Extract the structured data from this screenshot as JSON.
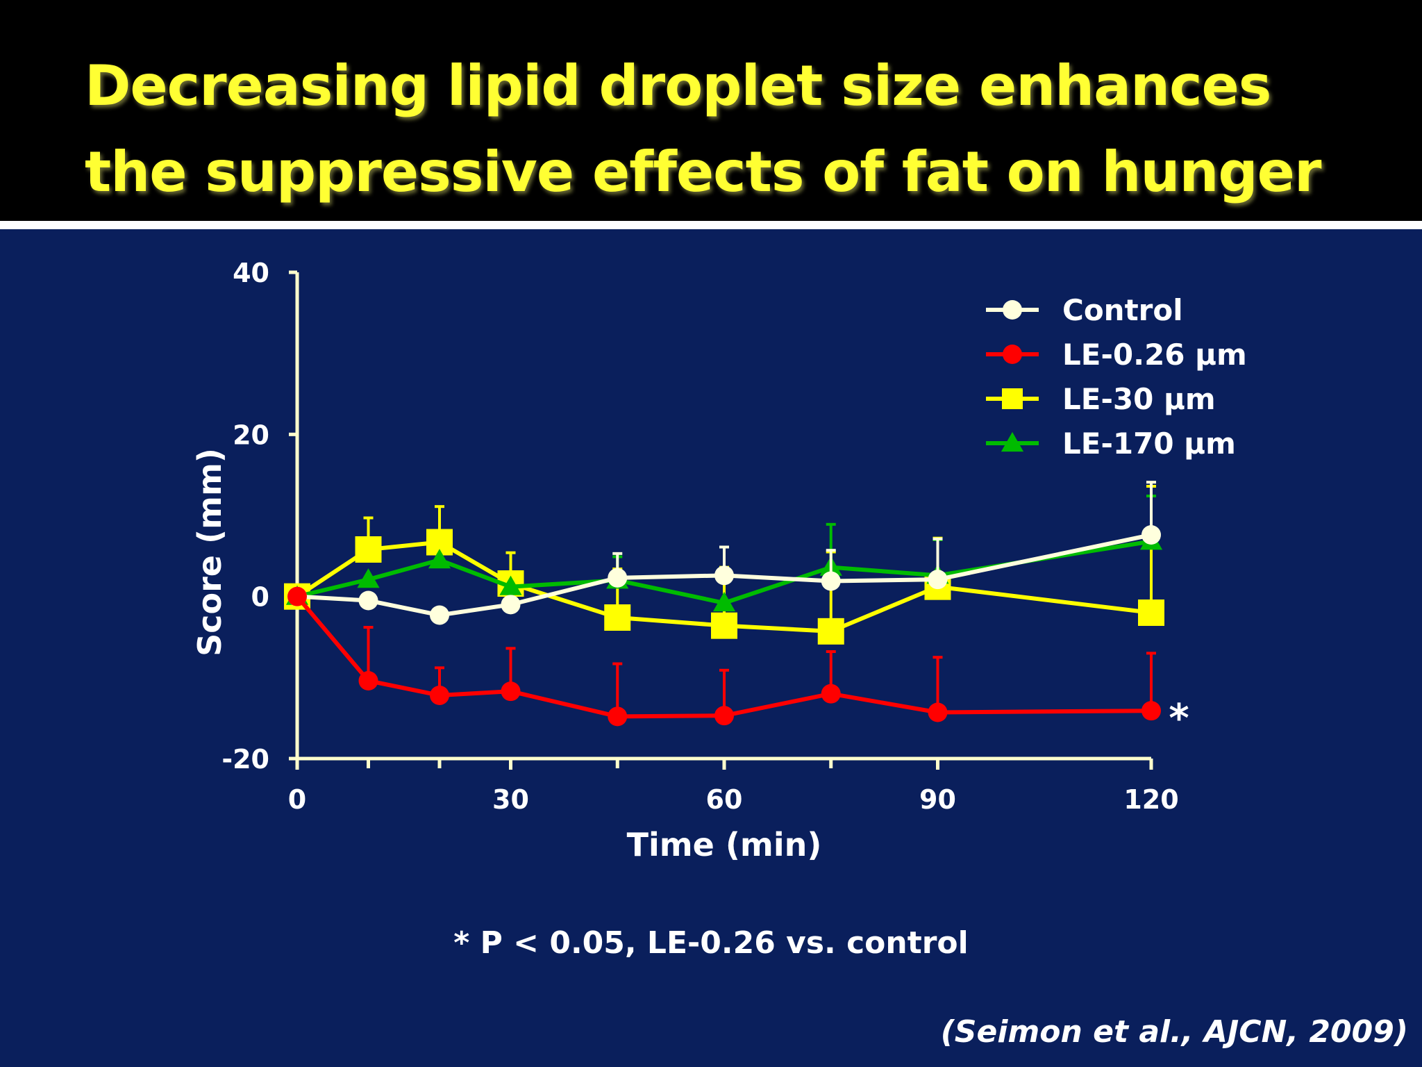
{
  "slide": {
    "title_line1": "Decreasing lipid droplet size enhances",
    "title_line2": "the suppressive effects of fat on hunger",
    "footnote": "* P < 0.05, LE-0.26 vs. control",
    "citation": "(Seimon et al., AJCN, 2009)"
  },
  "colors": {
    "background": "#0a1f5c",
    "title": "#ffff33",
    "axis": "#ffffcc"
  },
  "chart_data": {
    "type": "line",
    "title": "",
    "xlabel": "Time (min)",
    "ylabel": "Score (mm)",
    "xlim": [
      0,
      120
    ],
    "ylim": [
      -20,
      40
    ],
    "xticks": [
      0,
      30,
      60,
      90,
      120
    ],
    "xtick_labels": [
      "0",
      "30",
      "60",
      "90",
      "120"
    ],
    "xminor": [
      10,
      20,
      45,
      75
    ],
    "yticks": [
      -20,
      20,
      40
    ],
    "ytick_labels": [
      "-20",
      "20",
      "40"
    ],
    "yzero_label": "0",
    "significance_marker": "*",
    "legend_position": "top-right",
    "x": [
      0,
      10,
      20,
      30,
      45,
      60,
      75,
      90,
      120
    ],
    "series": [
      {
        "name": "Control",
        "color": "#ffffdd",
        "marker": "circle",
        "values": [
          0,
          -0.5,
          -2.3,
          -1,
          2.3,
          2.6,
          1.9,
          2.1,
          7.6
        ],
        "error_up": [
          0,
          0,
          0.8,
          0,
          3,
          3.5,
          3.8,
          5,
          6.5
        ]
      },
      {
        "name": "LE-0.26 μm",
        "color": "#ff0000",
        "marker": "circle",
        "values": [
          0,
          -10.4,
          -12.2,
          -11.7,
          -14.8,
          -14.7,
          -12,
          -14.3,
          -14.1
        ],
        "error_up": [
          0,
          6.6,
          3.4,
          5.3,
          6.5,
          5.6,
          5.2,
          6.8,
          7.1
        ]
      },
      {
        "name": "LE-30 μm",
        "color": "#ffff00",
        "marker": "square",
        "values": [
          0,
          5.8,
          6.7,
          1.6,
          -2.6,
          -3.6,
          -4.3,
          1.2,
          -2
        ],
        "error_up": [
          0,
          3.9,
          4.4,
          3.8,
          6,
          7.2,
          9.8,
          6,
          15.6
        ]
      },
      {
        "name": "LE-170 μm",
        "color": "#00bb00",
        "marker": "triangle",
        "values": [
          0,
          2.1,
          4.5,
          1.2,
          2,
          -0.8,
          3.6,
          2.6,
          6.8
        ],
        "error_up": [
          0,
          0,
          0,
          0,
          2.9,
          0,
          5.3,
          4.4,
          5.6
        ]
      }
    ]
  }
}
